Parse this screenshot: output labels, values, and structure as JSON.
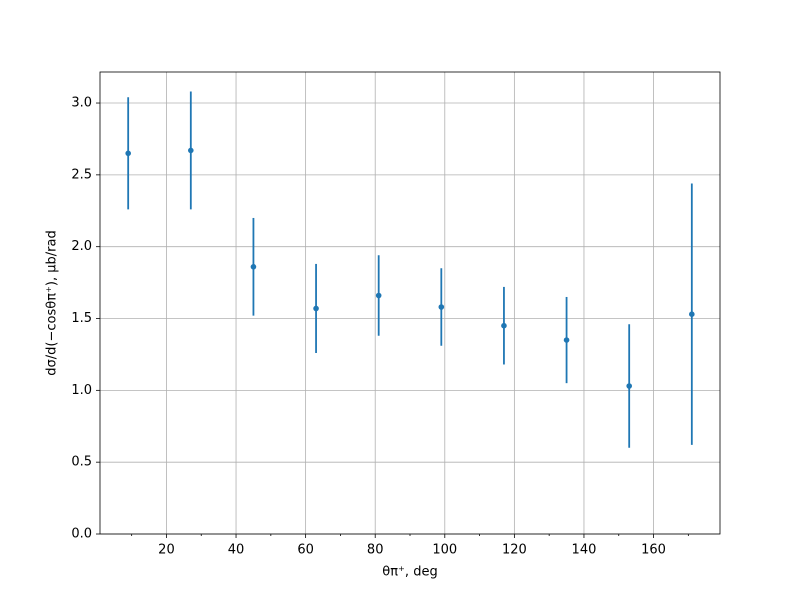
{
  "chart_data": {
    "type": "errorbar",
    "xlabel": "θπ⁺, deg",
    "ylabel": "dσ/d(−cosθπ⁺), μb/rad",
    "x": [
      9,
      27,
      45,
      63,
      81,
      99,
      117,
      135,
      153,
      171
    ],
    "series": [
      {
        "color": "#1f77b4",
        "values": [
          2.65,
          2.67,
          1.86,
          1.57,
          1.66,
          1.58,
          1.45,
          1.35,
          1.03,
          1.53
        ],
        "errors": [
          0.39,
          0.41,
          0.34,
          0.31,
          0.28,
          0.27,
          0.27,
          0.3,
          0.43,
          0.91
        ]
      }
    ],
    "xlim": [
      0.9,
      179.1
    ],
    "ylim": [
      0,
      3.216
    ],
    "xticks": [
      20,
      40,
      60,
      80,
      100,
      120,
      140,
      160
    ],
    "xminorticks": [
      10,
      30,
      50,
      70,
      90,
      110,
      130,
      150,
      170
    ],
    "yticks": [
      {
        "value": 0,
        "label": "0.0"
      },
      {
        "value": 0.5,
        "label": "0.5"
      },
      {
        "value": 1,
        "label": "1.0"
      },
      {
        "value": 1.5,
        "label": "1.5"
      },
      {
        "value": 2,
        "label": "2.0"
      },
      {
        "value": 2.5,
        "label": "2.5"
      },
      {
        "value": 3,
        "label": "3.0"
      }
    ],
    "grid": true
  }
}
